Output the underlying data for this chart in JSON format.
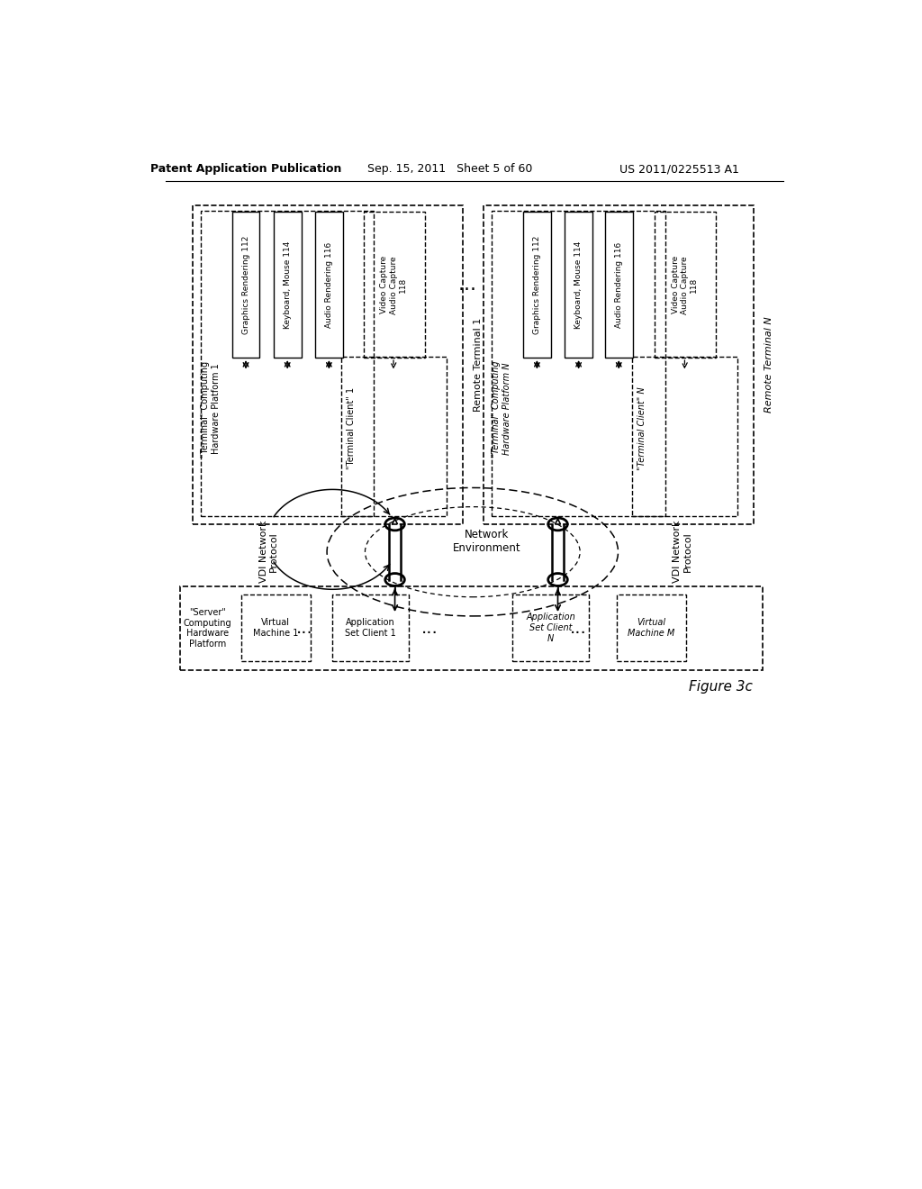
{
  "header_left": "Patent Application Publication",
  "header_mid": "Sep. 15, 2011   Sheet 5 of 60",
  "header_right": "US 2011/0225513 A1",
  "figure_label": "Figure 3c",
  "bg": "#ffffff",
  "fg": "#000000",
  "note_112": "Graphics Rendering 112",
  "note_114": "Keyboard, Mouse 114",
  "note_116": "Audio Rendering 116",
  "note_118": "Video Capture\nAudio Capture\n118",
  "label_rt1": "Remote Terminal 1",
  "label_rtn": "Remote Terminal N",
  "label_thp1": "\"Terminal\" Computing\nHardware Platform 1",
  "label_thpn": "\"Terminal\" Computing\nHardware Platform N",
  "label_tc1": "\"Terminal Client\" 1",
  "label_tcn": "\"Terminal Client\" N",
  "label_net": "Network\nEnvironment",
  "label_vdi": "VDI Network\nProtocol",
  "label_srv": "\"Server\"\nComputing\nHardware\nPlatform",
  "label_vm1": "Virtual\nMachine 1",
  "label_asc1": "Application\nSet Client 1",
  "label_ascn": "Application\nSet Client\nN",
  "label_vmm": "Virtual\nMachine M"
}
